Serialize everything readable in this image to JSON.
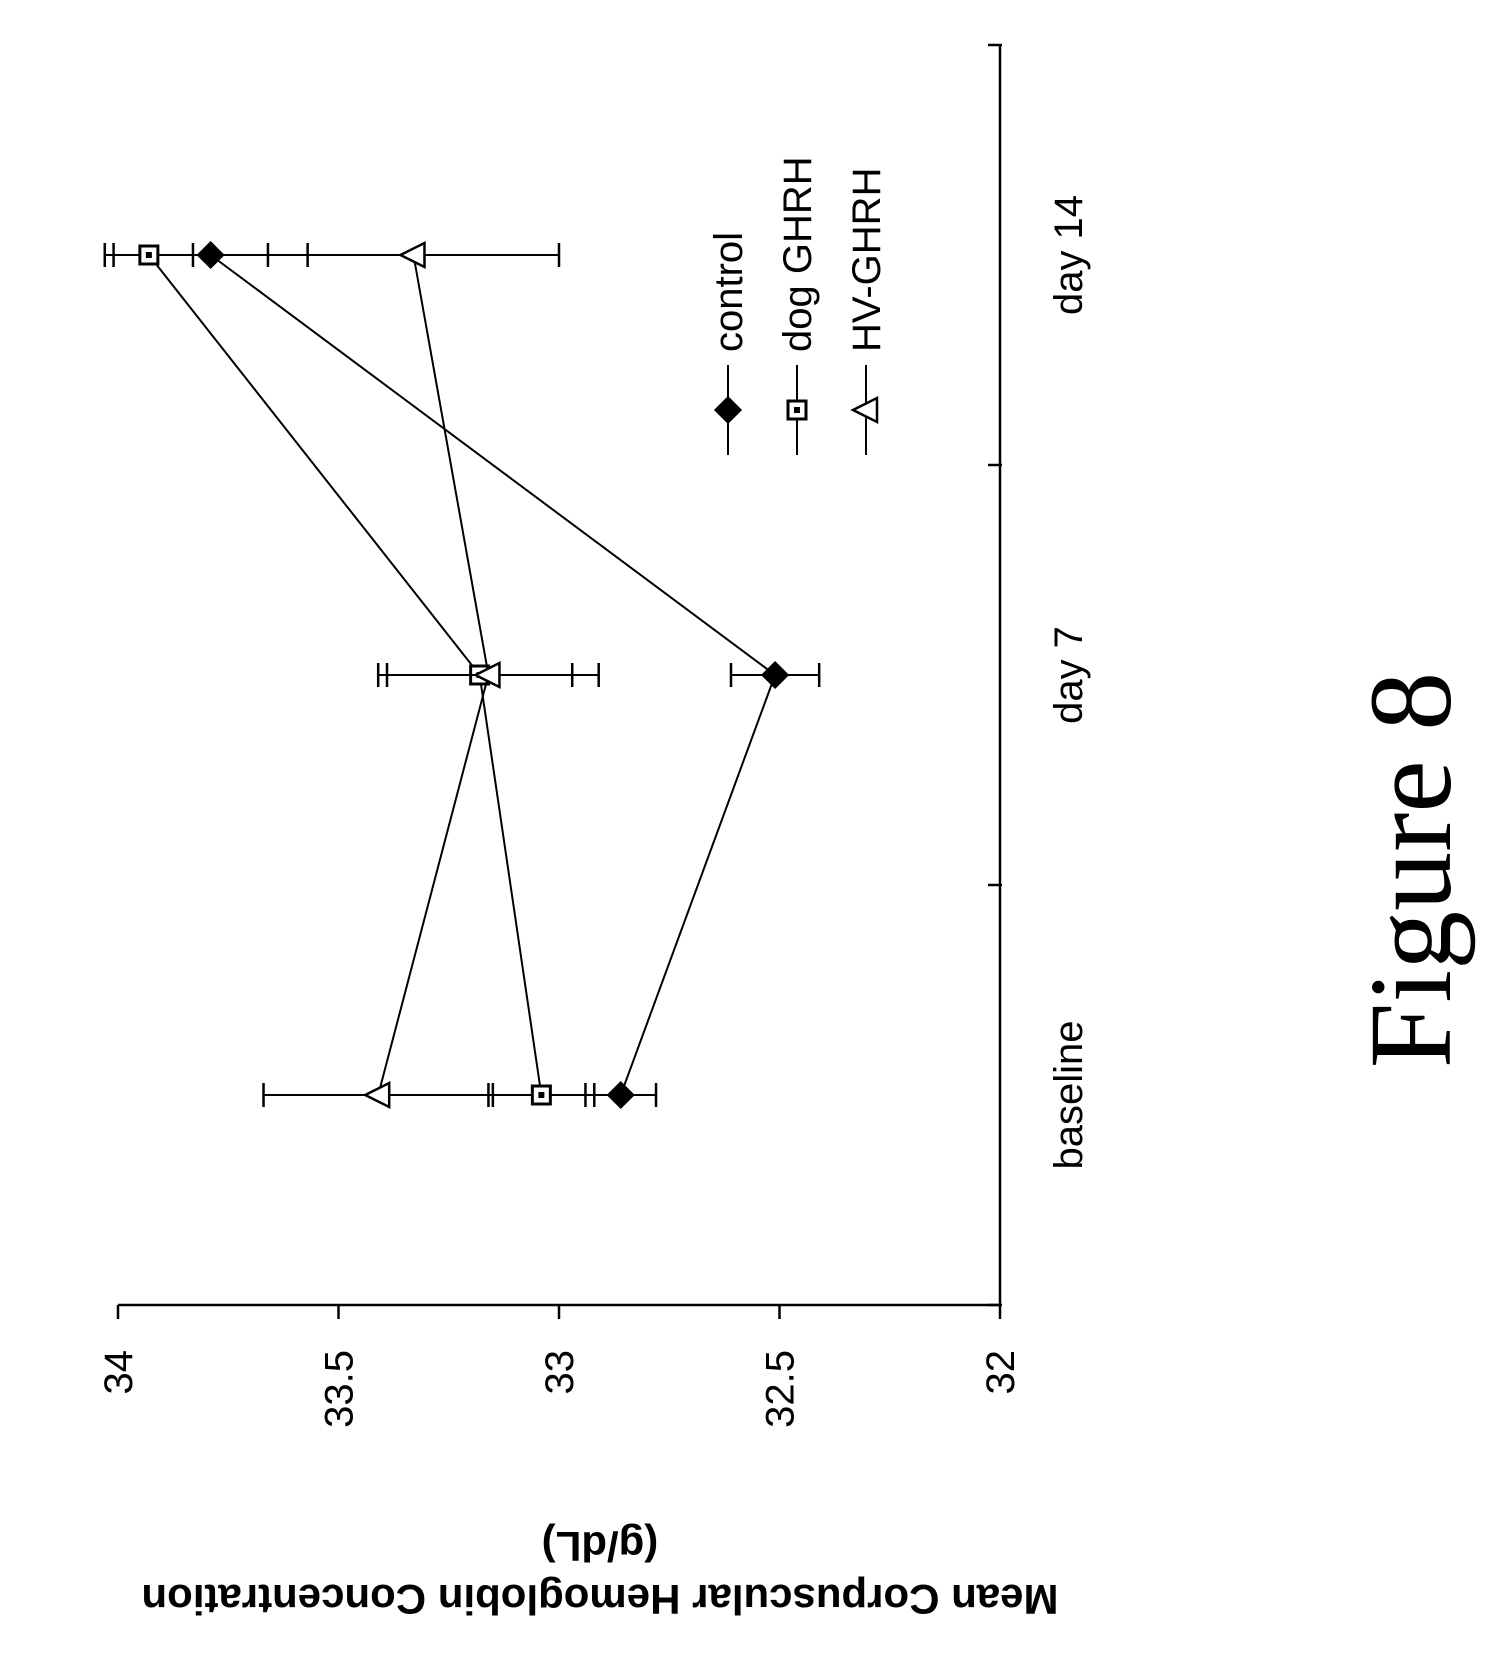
{
  "figure_caption": "Figure 8",
  "chart_data": {
    "type": "line",
    "orientation": "rotated 90° clockwise",
    "categories": [
      "baseline",
      "day 7",
      "day 14"
    ],
    "ylabel": [
      "Mean Corpuscular Hemoglobin Concentration",
      "(g/dL)"
    ],
    "xlabel": "",
    "ylim": [
      32,
      34
    ],
    "yticks": [
      "32",
      "32.5",
      "33",
      "33.5",
      "34"
    ],
    "grid": false,
    "legend_position": "right",
    "series": [
      {
        "name": "control",
        "marker": "diamond-filled",
        "values": [
          32.86,
          32.51,
          33.79
        ],
        "error": [
          0.08,
          0.1,
          0.22
        ]
      },
      {
        "name": "dog GHRH",
        "marker": "square-dotted",
        "values": [
          33.04,
          33.18,
          33.93
        ],
        "error": [
          0.12,
          0.21,
          0.1
        ]
      },
      {
        "name": "HV-GHRH",
        "marker": "triangle-open",
        "values": [
          33.41,
          33.16,
          33.33
        ],
        "error": [
          0.26,
          0.25,
          0.33
        ]
      }
    ]
  }
}
